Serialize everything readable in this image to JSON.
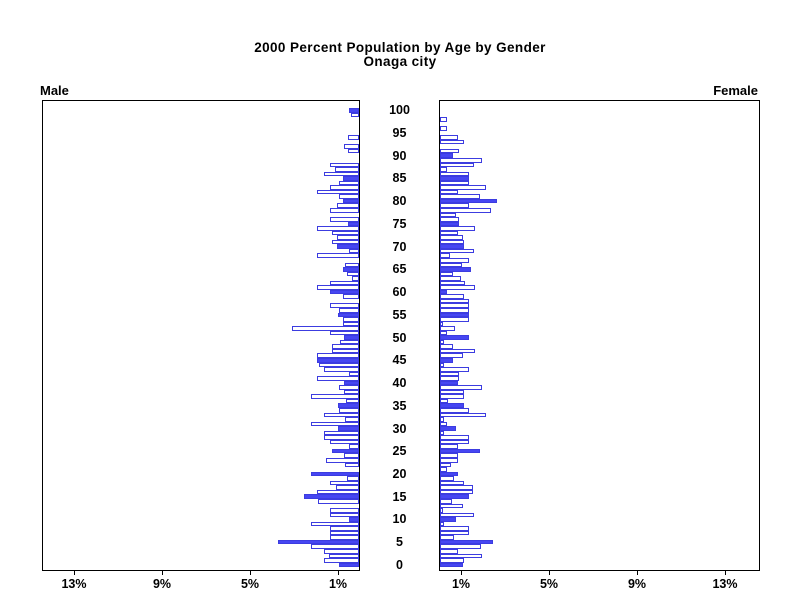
{
  "title": {
    "line1": "2000 Percent Population by Age by Gender",
    "line2": "Onaga city"
  },
  "panels": {
    "left_header": "Male",
    "right_header": "Female"
  },
  "axis": {
    "left_tick_values": [
      13,
      9,
      5,
      1
    ],
    "left_tick_labels": [
      "13%",
      "9%",
      "5%",
      "1%"
    ],
    "right_tick_values": [
      1,
      5,
      9,
      13
    ],
    "right_tick_labels": [
      "1%",
      "5%",
      "9%",
      "13%"
    ],
    "age_tick_values": [
      0,
      5,
      10,
      15,
      20,
      25,
      30,
      35,
      40,
      45,
      50,
      55,
      60,
      65,
      70,
      75,
      80,
      85,
      90,
      95,
      100
    ],
    "age_tick_labels": [
      "0",
      "5",
      "10",
      "15",
      "20",
      "25",
      "30",
      "35",
      "40",
      "45",
      "50",
      "55",
      "60",
      "65",
      "70",
      "75",
      "80",
      "85",
      "90",
      "95",
      "100"
    ]
  },
  "chart_data": {
    "type": "bar",
    "subtype": "population-pyramid",
    "title": "2000 Percent Population by Age by Gender",
    "subtitle": "Onaga city",
    "x_unit": "percent of population",
    "xlim": [
      0,
      14.5
    ],
    "age_min": 0,
    "age_max": 100,
    "age_step": 1,
    "highlight_rule": "bars for ages divisible by 5 are solid filled; all other ages are outlined white",
    "legend": "none",
    "series": [
      {
        "name": "Male",
        "values": [
          0.93,
          1.6,
          1.35,
          1.6,
          2.2,
          3.7,
          1.3,
          1.3,
          1.3,
          2.2,
          0.45,
          1.3,
          1.3,
          0,
          1.85,
          2.5,
          1.9,
          1.05,
          1.3,
          0.55,
          2.2,
          0,
          0.65,
          1.5,
          0.7,
          1.25,
          0.45,
          1.3,
          1.6,
          1.6,
          0.97,
          2.2,
          0.65,
          1.6,
          0.9,
          0.97,
          0.6,
          2.2,
          0.7,
          0.9,
          0.7,
          1.9,
          0.45,
          1.6,
          1.8,
          1.9,
          1.9,
          1.25,
          1.25,
          0.88,
          0.7,
          1.3,
          3.05,
          0.74,
          0.74,
          0.97,
          0.9,
          1.3,
          0,
          0.74,
          1.3,
          1.9,
          1.3,
          0.3,
          0.55,
          0.74,
          0.65,
          0,
          1.9,
          0.45,
          1.0,
          1.25,
          1.0,
          1.25,
          1.9,
          0.5,
          1.3,
          0,
          1.3,
          1.0,
          0.74,
          0.9,
          1.9,
          1.3,
          0.9,
          0.74,
          1.6,
          1.1,
          1.3,
          0,
          0,
          0.5,
          0.7,
          0,
          0.5,
          0,
          0,
          0,
          0,
          0.37,
          0.46
        ]
      },
      {
        "name": "Female",
        "values": [
          1.05,
          1.1,
          1.9,
          0.8,
          1.85,
          2.4,
          0.62,
          1.3,
          1.3,
          0.2,
          0.73,
          1.56,
          0.15,
          1.06,
          0.55,
          1.33,
          1.5,
          1.5,
          1.1,
          0.64,
          0.83,
          0.3,
          0.5,
          0.83,
          0.83,
          1.84,
          0.83,
          1.3,
          1.3,
          0.2,
          0.73,
          0.32,
          0.2,
          2.1,
          1.33,
          1.1,
          0.37,
          1.1,
          1.1,
          1.9,
          0.83,
          0.87,
          0.87,
          1.3,
          0.2,
          0.6,
          1.06,
          1.6,
          0.6,
          0.2,
          1.33,
          0.3,
          0.7,
          0.15,
          1.33,
          1.33,
          1.33,
          1.33,
          1.33,
          1.1,
          0.32,
          1.6,
          1.15,
          0.97,
          0.6,
          1.4,
          1.0,
          1.3,
          0.46,
          1.56,
          1.1,
          1.1,
          1.06,
          0.83,
          1.6,
          0.87,
          0.87,
          0.73,
          2.34,
          1.33,
          2.6,
          1.84,
          0.83,
          2.1,
          1.33,
          1.33,
          1.3,
          0.3,
          1.56,
          1.9,
          0.6,
          0.87,
          0,
          1.1,
          0.83,
          0,
          0.3,
          0,
          0.3,
          0,
          0
        ]
      }
    ],
    "colors": {
      "bar_fill": "#4646f2",
      "bar_outline": "#3c3ce0",
      "axis": "#000000",
      "background": "#ffffff",
      "text": "#000000"
    }
  }
}
